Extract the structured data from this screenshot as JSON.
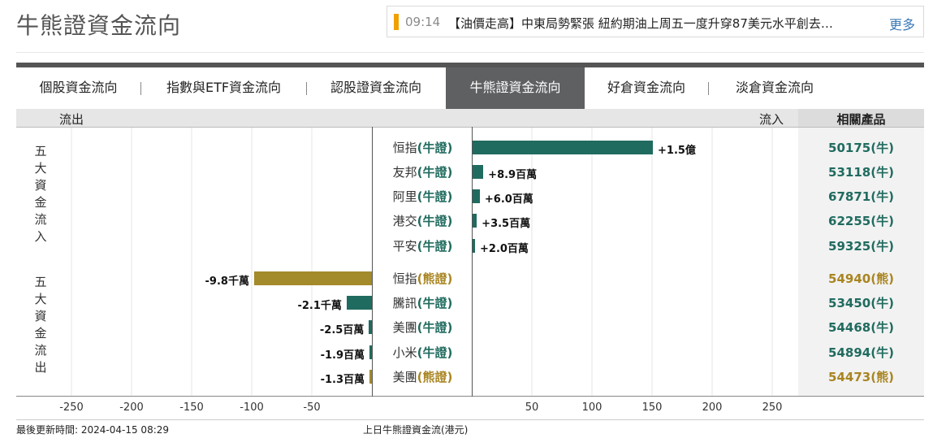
{
  "page": {
    "title": "牛熊證資金流向"
  },
  "ticker": {
    "time": "09:14",
    "text": "【油價走高】中東局勢緊張 紐約期油上周五一度升穿87美元水平創去…",
    "more": "更多"
  },
  "tabs": [
    {
      "label": "個股資金流向",
      "active": false
    },
    {
      "label": "指數與ETF資金流向",
      "active": false
    },
    {
      "label": "認股證資金流向",
      "active": false
    },
    {
      "label": "牛熊證資金流向",
      "active": true
    },
    {
      "label": "好倉資金流向",
      "active": false
    },
    {
      "label": "淡倉資金流向",
      "active": false
    }
  ],
  "header": {
    "outflow": "流出",
    "inflow": "流入",
    "products": "相關產品"
  },
  "groups": {
    "inflow_label": "五大資金流入",
    "outflow_label": "五大資金流出"
  },
  "rows": [
    {
      "name": "恒指",
      "tag": "(牛證)",
      "kind": "bull",
      "value": 150000000,
      "value_label": "+1.5億",
      "product": "50175(牛)"
    },
    {
      "name": "友邦",
      "tag": "(牛證)",
      "kind": "bull",
      "value": 8900000,
      "value_label": "+8.9百萬",
      "product": "53118(牛)"
    },
    {
      "name": "阿里",
      "tag": "(牛證)",
      "kind": "bull",
      "value": 6000000,
      "value_label": "+6.0百萬",
      "product": "67871(牛)"
    },
    {
      "name": "港交",
      "tag": "(牛證)",
      "kind": "bull",
      "value": 3500000,
      "value_label": "+3.5百萬",
      "product": "62255(牛)"
    },
    {
      "name": "平安",
      "tag": "(牛證)",
      "kind": "bull",
      "value": 2000000,
      "value_label": "+2.0百萬",
      "product": "59325(牛)"
    },
    {
      "name": "恒指",
      "tag": "(熊證)",
      "kind": "bear",
      "value": -98000000,
      "value_label": "-9.8千萬",
      "product": "54940(熊)"
    },
    {
      "name": "騰訊",
      "tag": "(牛證)",
      "kind": "bull",
      "value": -21000000,
      "value_label": "-2.1千萬",
      "product": "53450(牛)"
    },
    {
      "name": "美團",
      "tag": "(牛證)",
      "kind": "bull",
      "value": -2500000,
      "value_label": "-2.5百萬",
      "product": "54468(牛)"
    },
    {
      "name": "小米",
      "tag": "(牛證)",
      "kind": "bull",
      "value": -1900000,
      "value_label": "-1.9百萬",
      "product": "54894(牛)"
    },
    {
      "name": "美團",
      "tag": "(熊證)",
      "kind": "bear",
      "value": -1300000,
      "value_label": "-1.3百萬",
      "product": "54473(熊)"
    }
  ],
  "chart_data": {
    "type": "bar",
    "orientation": "horizontal",
    "categories": [
      "恒指(牛證)",
      "友邦(牛證)",
      "阿里(牛證)",
      "港交(牛證)",
      "平安(牛證)",
      "恒指(熊證)",
      "騰訊(牛證)",
      "美團(牛證)",
      "小米(牛證)",
      "美團(熊證)"
    ],
    "values": [
      150000000,
      8900000,
      6000000,
      3500000,
      2000000,
      -98000000,
      -21000000,
      -2500000,
      -1900000,
      -1300000
    ],
    "xlabel": "上日牛熊證資金流(港元)",
    "left_ticks": [
      "-250",
      "-200",
      "-150",
      "-100",
      "-50"
    ],
    "right_ticks": [
      "50",
      "100",
      "150",
      "200",
      "250"
    ],
    "xlim": [
      -250000000,
      250000000
    ],
    "colors": {
      "bull": "#206b5f",
      "bear": "#a38a2a"
    }
  },
  "footer": {
    "updated_label": "最後更新時間:",
    "updated_value": "2024-04-15 08:29",
    "axis_caption": "上日牛熊證資金流(港元)"
  }
}
